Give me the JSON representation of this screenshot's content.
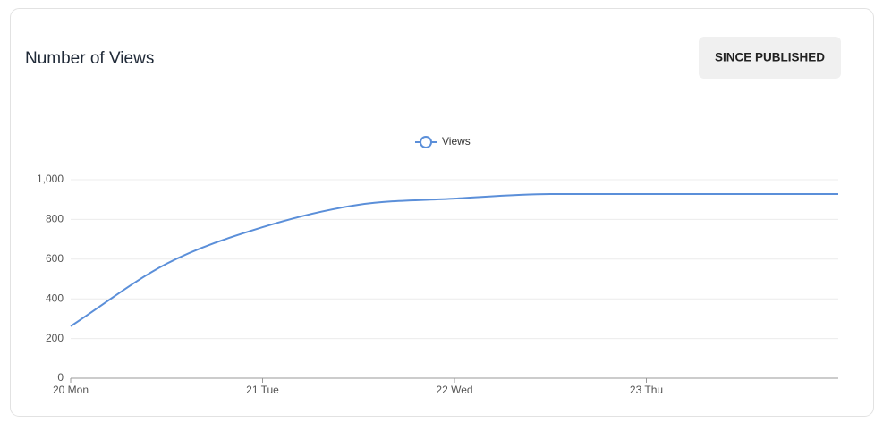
{
  "chart_data": {
    "type": "line",
    "title": "Number of Views",
    "button": "SINCE PUBLISHED",
    "x": [
      20,
      20.5,
      21,
      21.5,
      22,
      22.5,
      23,
      23.5,
      24
    ],
    "series": [
      {
        "name": "Views",
        "color": "#5b8fd9",
        "values": [
          262,
          577,
          761,
          874,
          905,
          928,
          928,
          928,
          928
        ]
      }
    ],
    "xlim": [
      20,
      24
    ],
    "xticks": [
      {
        "value": 20,
        "label": "20 Mon"
      },
      {
        "value": 21,
        "label": "21 Tue"
      },
      {
        "value": 22,
        "label": "22 Wed"
      },
      {
        "value": 23,
        "label": "23 Thu"
      }
    ],
    "ylim": [
      0,
      1000
    ],
    "yticks": [
      0,
      200,
      400,
      600,
      800,
      {
        "value": 1000,
        "label": "1,000"
      }
    ],
    "grid": true,
    "legend": "top"
  }
}
